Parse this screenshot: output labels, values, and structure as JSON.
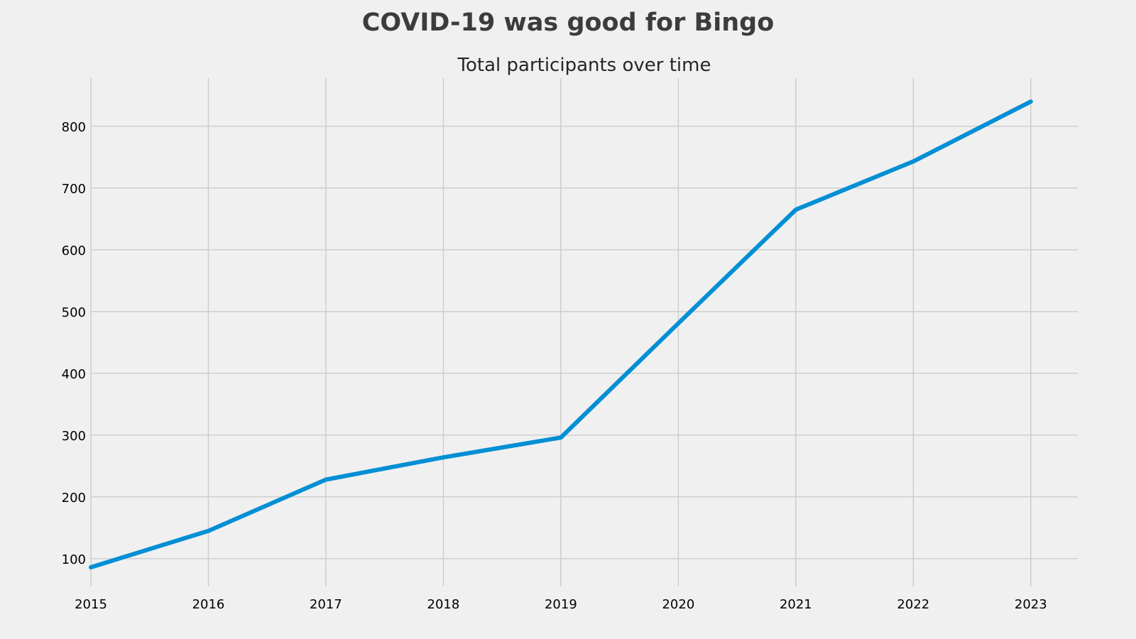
{
  "chart_data": {
    "type": "line",
    "title": "COVID-19 was good for Bingo",
    "subtitle": "Total participants over time",
    "xlabel": "",
    "ylabel": "",
    "x": [
      2015,
      2016,
      2017,
      2018,
      2019,
      2020,
      2021,
      2022,
      2023
    ],
    "x_ticks": [
      "2015",
      "2016",
      "2017",
      "2018",
      "2019",
      "2020",
      "2021",
      "2022",
      "2023"
    ],
    "xlim": [
      2015,
      2023.4
    ],
    "y_ticks": [
      100,
      200,
      300,
      400,
      500,
      600,
      700,
      800
    ],
    "ylim": [
      55,
      878
    ],
    "grid": true,
    "legend": "none",
    "series": [
      {
        "values": [
          86,
          145,
          228,
          264,
          296,
          481,
          665,
          743,
          840
        ],
        "color": "#008fd5"
      }
    ],
    "background": "#f0f0f0",
    "grid_color": "#cbcbcb"
  }
}
